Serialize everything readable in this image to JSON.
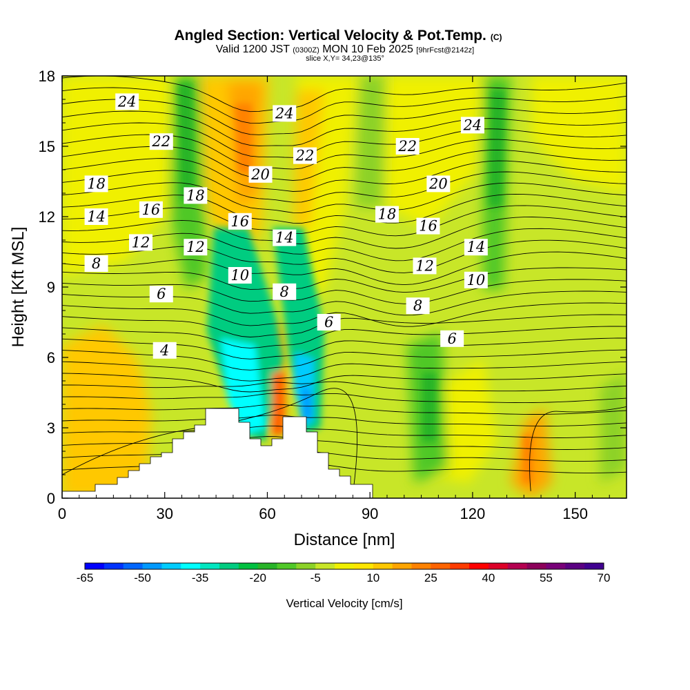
{
  "title": {
    "main": "Angled Section: Vertical Velocity & Pot.Temp.",
    "unit_tag": "(C)",
    "valid_prefix": "Valid 1200 JST",
    "valid_utc": "(0300Z)",
    "valid_date": "MON 10 Feb 2025",
    "forecast_tag": "[9hrFcst@2142z]",
    "slice": "slice X,Y= 34,23@135°"
  },
  "chart_data": {
    "type": "heatmap",
    "xlabel": "Distance [nm]",
    "ylabel": "Height [Kft MSL]",
    "xlim": [
      0,
      165
    ],
    "ylim": [
      0,
      18
    ],
    "x_ticks": [
      0,
      30,
      60,
      90,
      120,
      150
    ],
    "y_ticks": [
      0,
      3,
      6,
      9,
      12,
      15,
      18
    ],
    "x_tick_labels": [
      "0",
      "30",
      "60",
      "90",
      "120",
      "150"
    ],
    "y_tick_labels": [
      "0",
      "3",
      "6",
      "9",
      "12",
      "15",
      "18"
    ],
    "colorbar": {
      "label": "Vertical Velocity [cm/s]",
      "min": -65,
      "max": 70,
      "step": 5,
      "tick_labels": [
        "-65",
        "-50",
        "-35",
        "-20",
        "-5",
        "10",
        "25",
        "40",
        "55",
        "70"
      ],
      "colors": [
        "#0000ff",
        "#0033ff",
        "#0066ff",
        "#0099ff",
        "#00ccff",
        "#00ffff",
        "#00e6c0",
        "#00cc80",
        "#00c040",
        "#28b428",
        "#50c828",
        "#8cd228",
        "#c8e628",
        "#f0f000",
        "#ffe600",
        "#ffc800",
        "#ffa500",
        "#ff8200",
        "#ff6400",
        "#ff3c00",
        "#ff0000",
        "#dc0028",
        "#b40050",
        "#8c005a",
        "#780078",
        "#5a0082",
        "#400090"
      ]
    },
    "theta_contours": [
      {
        "value": 4,
        "x": 30,
        "y": 6.3
      },
      {
        "value": 6,
        "x": 29,
        "y": 8.7
      },
      {
        "value": 6,
        "x": 78,
        "y": 7.5
      },
      {
        "value": 6,
        "x": 114,
        "y": 6.8
      },
      {
        "value": 8,
        "x": 10,
        "y": 10.0
      },
      {
        "value": 8,
        "x": 65,
        "y": 8.8
      },
      {
        "value": 8,
        "x": 104,
        "y": 8.2
      },
      {
        "value": 10,
        "x": 52,
        "y": 9.5
      },
      {
        "value": 10,
        "x": 121,
        "y": 9.3
      },
      {
        "value": 12,
        "x": 23,
        "y": 10.9
      },
      {
        "value": 12,
        "x": 39,
        "y": 10.7
      },
      {
        "value": 12,
        "x": 106,
        "y": 9.9
      },
      {
        "value": 14,
        "x": 10,
        "y": 12.0
      },
      {
        "value": 14,
        "x": 65,
        "y": 11.1
      },
      {
        "value": 14,
        "x": 121,
        "y": 10.7
      },
      {
        "value": 16,
        "x": 26,
        "y": 12.3
      },
      {
        "value": 16,
        "x": 52,
        "y": 11.8
      },
      {
        "value": 16,
        "x": 107,
        "y": 11.6
      },
      {
        "value": 18,
        "x": 10,
        "y": 13.4
      },
      {
        "value": 18,
        "x": 39,
        "y": 12.9
      },
      {
        "value": 18,
        "x": 95,
        "y": 12.1
      },
      {
        "value": 20,
        "x": 58,
        "y": 13.8
      },
      {
        "value": 20,
        "x": 110,
        "y": 13.4
      },
      {
        "value": 22,
        "x": 29,
        "y": 15.2
      },
      {
        "value": 22,
        "x": 71,
        "y": 14.6
      },
      {
        "value": 22,
        "x": 101,
        "y": 15.0
      },
      {
        "value": 24,
        "x": 19,
        "y": 16.9
      },
      {
        "value": 24,
        "x": 65,
        "y": 16.4
      },
      {
        "value": 24,
        "x": 120,
        "y": 15.9
      }
    ]
  }
}
